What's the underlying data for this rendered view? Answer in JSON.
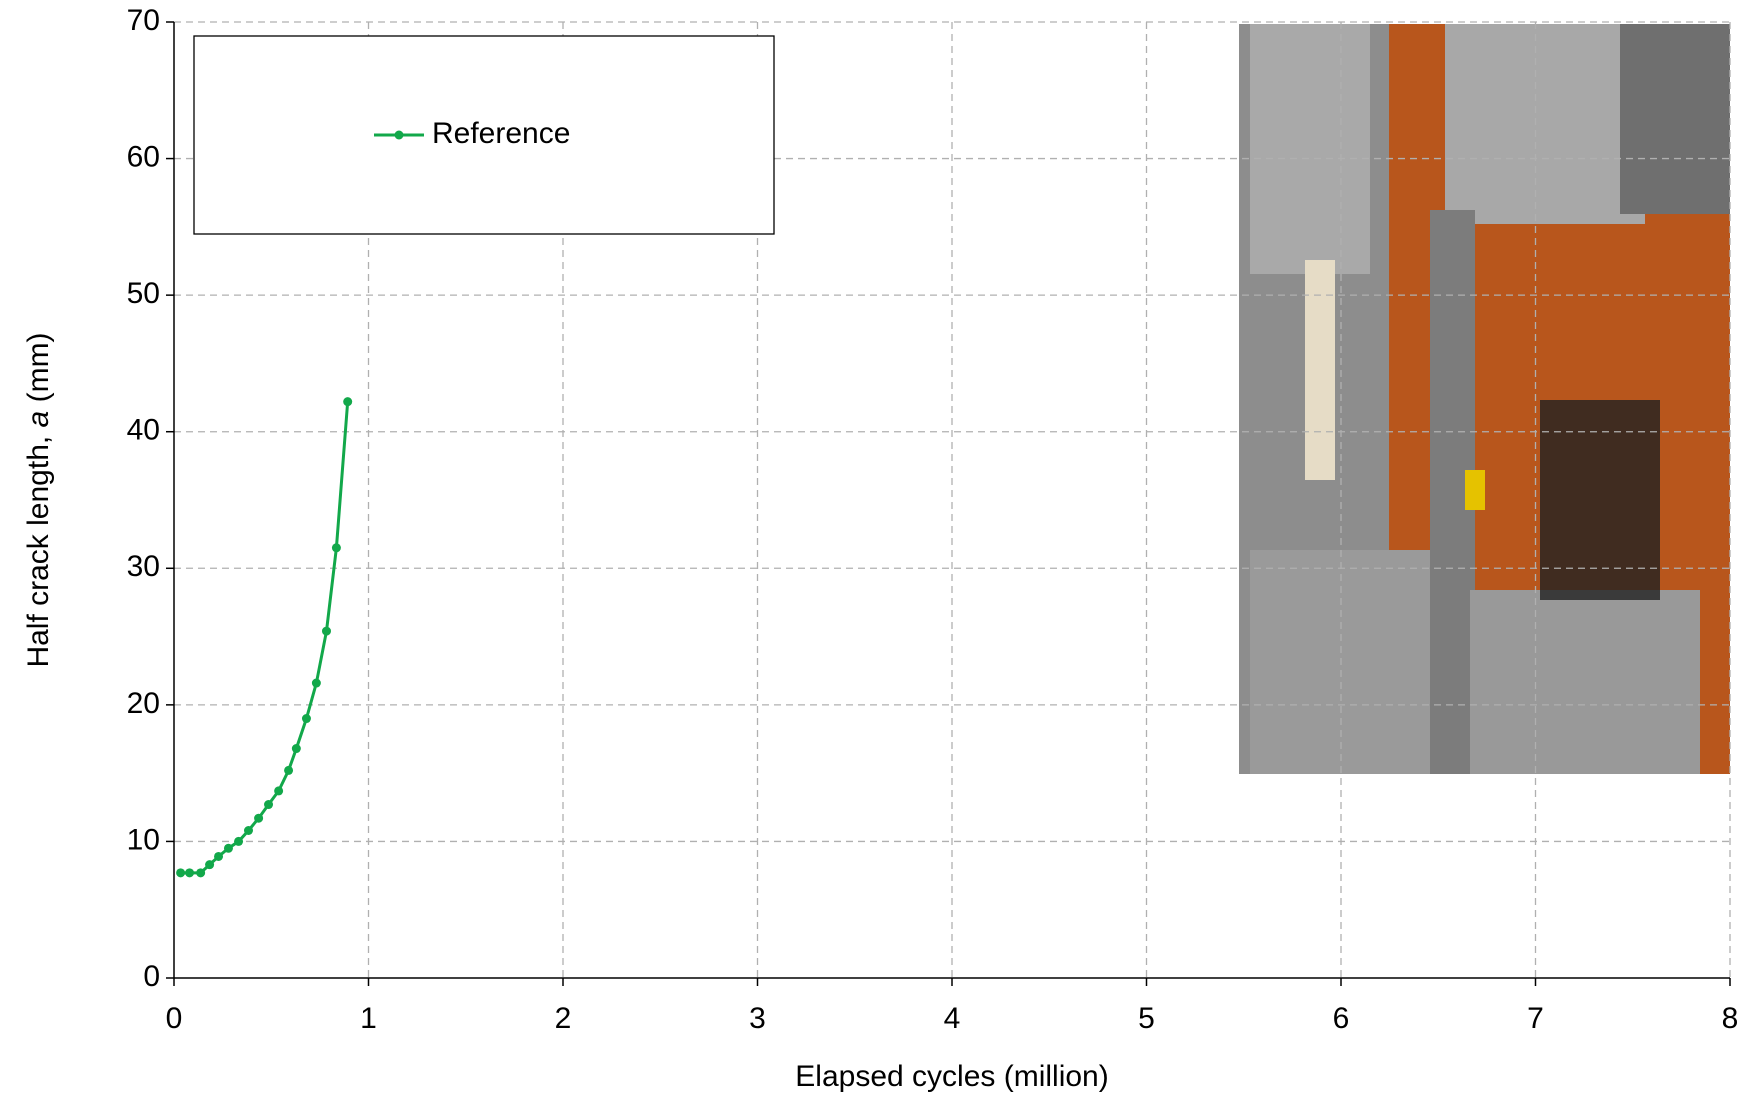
{
  "chart_data": {
    "type": "line",
    "xlabel": "Elapsed cycles (million)",
    "ylabel": [
      "Half crack length, ",
      "a",
      " (mm)"
    ],
    "x": [
      0.034,
      0.08,
      0.137,
      0.183,
      0.229,
      0.28,
      0.332,
      0.383,
      0.435,
      0.486,
      0.538,
      0.589,
      0.629,
      0.681,
      0.732,
      0.784,
      0.835,
      0.893
    ],
    "series": [
      {
        "name": "Reference",
        "color": "#12a84a",
        "values": [
          7.7,
          7.7,
          7.7,
          8.3,
          8.9,
          9.5,
          10.0,
          10.8,
          11.7,
          12.7,
          13.7,
          15.2,
          16.8,
          19.0,
          21.6,
          25.4,
          31.5,
          42.2
        ]
      }
    ],
    "xlim": [
      0,
      8
    ],
    "xticks": [
      0,
      1,
      2,
      3,
      4,
      5,
      6,
      7,
      8
    ],
    "ylim": [
      0,
      70
    ],
    "yticks": [
      0,
      10,
      20,
      30,
      40,
      50,
      60,
      70
    ],
    "grid": true,
    "legend": "upper left"
  }
}
